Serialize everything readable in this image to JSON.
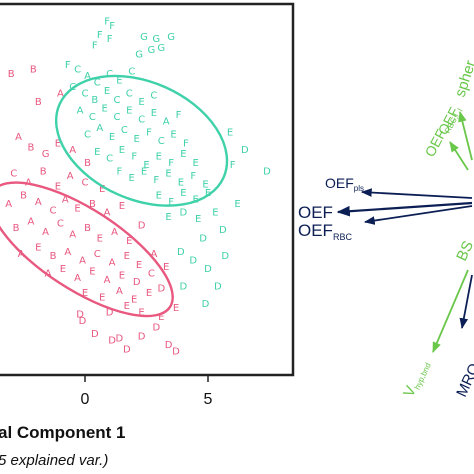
{
  "colors": {
    "group_a": "#e8587f",
    "group_b": "#3fd1a9",
    "navy": "#0c1f55",
    "green": "#69c74a",
    "axis": "#222222"
  },
  "chart_data": [
    {
      "type": "scatter",
      "xlabel_visible": "al Component 1",
      "xlabel_sub_visible": "5 explained var.)",
      "x_ticks": [
        "0",
        "5"
      ],
      "x_tick_values": [
        0,
        5
      ],
      "xlim_visible": [
        -3.4,
        8.2
      ],
      "ylim_visible": [
        -7.8,
        8.4
      ],
      "grid": false,
      "series": [
        {
          "color": "#e8587f",
          "points": [
            {
              "x": -2.1,
              "y": 5.6,
              "l": "B"
            },
            {
              "x": -3.0,
              "y": 5.4,
              "l": "B"
            },
            {
              "x": -1.9,
              "y": 4.1,
              "l": "B"
            },
            {
              "x": -1.0,
              "y": 4.5,
              "l": "A"
            },
            {
              "x": -2.7,
              "y": 2.5,
              "l": "A"
            },
            {
              "x": -2.2,
              "y": 2.0,
              "l": "B"
            },
            {
              "x": -1.6,
              "y": 1.7,
              "l": "G"
            },
            {
              "x": -1.1,
              "y": 2.2,
              "l": "E"
            },
            {
              "x": -0.5,
              "y": 1.9,
              "l": "A"
            },
            {
              "x": 0.1,
              "y": 1.3,
              "l": "B"
            },
            {
              "x": -2.9,
              "y": 0.8,
              "l": "C"
            },
            {
              "x": -2.3,
              "y": 0.4,
              "l": "A"
            },
            {
              "x": -1.7,
              "y": 0.9,
              "l": "B"
            },
            {
              "x": -1.1,
              "y": 0.2,
              "l": "E"
            },
            {
              "x": -0.6,
              "y": 0.7,
              "l": "A"
            },
            {
              "x": 0.0,
              "y": 0.4,
              "l": "C"
            },
            {
              "x": 0.7,
              "y": 0.1,
              "l": "E"
            },
            {
              "x": -3.1,
              "y": -0.6,
              "l": "A"
            },
            {
              "x": -2.5,
              "y": -0.2,
              "l": "B"
            },
            {
              "x": -1.9,
              "y": -0.5,
              "l": "A"
            },
            {
              "x": -1.3,
              "y": -0.9,
              "l": "C"
            },
            {
              "x": -0.8,
              "y": -0.4,
              "l": "A"
            },
            {
              "x": -0.3,
              "y": -0.8,
              "l": "E"
            },
            {
              "x": 0.3,
              "y": -0.6,
              "l": "B"
            },
            {
              "x": 0.9,
              "y": -1.0,
              "l": "A"
            },
            {
              "x": 1.5,
              "y": -0.7,
              "l": "E"
            },
            {
              "x": -2.8,
              "y": -1.7,
              "l": "B"
            },
            {
              "x": -2.2,
              "y": -1.4,
              "l": "A"
            },
            {
              "x": -1.6,
              "y": -1.9,
              "l": "A"
            },
            {
              "x": -1.0,
              "y": -1.5,
              "l": "C"
            },
            {
              "x": -0.5,
              "y": -2.0,
              "l": "A"
            },
            {
              "x": 0.1,
              "y": -1.7,
              "l": "B"
            },
            {
              "x": 0.6,
              "y": -2.2,
              "l": "E"
            },
            {
              "x": 1.2,
              "y": -1.9,
              "l": "A"
            },
            {
              "x": 1.8,
              "y": -2.3,
              "l": "E"
            },
            {
              "x": 2.3,
              "y": -1.6,
              "l": "D"
            },
            {
              "x": -2.6,
              "y": -2.9,
              "l": "A"
            },
            {
              "x": -1.9,
              "y": -2.6,
              "l": "E"
            },
            {
              "x": -1.3,
              "y": -3.0,
              "l": "B"
            },
            {
              "x": -0.7,
              "y": -2.8,
              "l": "A"
            },
            {
              "x": -0.1,
              "y": -3.2,
              "l": "A"
            },
            {
              "x": 0.5,
              "y": -2.9,
              "l": "C"
            },
            {
              "x": 1.1,
              "y": -3.3,
              "l": "A"
            },
            {
              "x": 1.7,
              "y": -3.0,
              "l": "E"
            },
            {
              "x": 2.2,
              "y": -3.4,
              "l": "E"
            },
            {
              "x": 2.8,
              "y": -2.9,
              "l": "A"
            },
            {
              "x": -1.5,
              "y": -3.8,
              "l": "A"
            },
            {
              "x": -0.9,
              "y": -3.6,
              "l": "E"
            },
            {
              "x": -0.3,
              "y": -4.0,
              "l": "A"
            },
            {
              "x": 0.3,
              "y": -3.7,
              "l": "E"
            },
            {
              "x": 0.9,
              "y": -4.1,
              "l": "A"
            },
            {
              "x": 1.5,
              "y": -3.9,
              "l": "E"
            },
            {
              "x": 2.1,
              "y": -4.2,
              "l": "D"
            },
            {
              "x": 2.7,
              "y": -3.8,
              "l": "C"
            },
            {
              "x": 3.3,
              "y": -3.5,
              "l": "E"
            },
            {
              "x": 0.0,
              "y": -4.7,
              "l": "E"
            },
            {
              "x": 0.7,
              "y": -4.9,
              "l": "E"
            },
            {
              "x": 1.4,
              "y": -4.6,
              "l": "A"
            },
            {
              "x": 2.0,
              "y": -5.0,
              "l": "E"
            },
            {
              "x": 2.6,
              "y": -4.7,
              "l": "E"
            },
            {
              "x": 3.1,
              "y": -4.5,
              "l": "D"
            },
            {
              "x": 1.0,
              "y": -5.6,
              "l": "D"
            },
            {
              "x": 1.7,
              "y": -5.3,
              "l": "E"
            },
            {
              "x": 2.3,
              "y": -5.6,
              "l": "E"
            },
            {
              "x": -0.2,
              "y": -5.7,
              "l": "D"
            },
            {
              "x": -0.1,
              "y": -6.0,
              "l": "D"
            },
            {
              "x": 0.4,
              "y": -6.6,
              "l": "D"
            },
            {
              "x": 1.1,
              "y": -6.9,
              "l": "D"
            },
            {
              "x": 1.4,
              "y": -6.8,
              "l": "D"
            },
            {
              "x": 1.7,
              "y": -7.3,
              "l": "D"
            },
            {
              "x": 2.3,
              "y": -6.7,
              "l": "D"
            },
            {
              "x": 2.9,
              "y": -6.3,
              "l": "D"
            },
            {
              "x": 3.4,
              "y": -7.1,
              "l": "D"
            },
            {
              "x": 3.7,
              "y": -7.4,
              "l": "D"
            },
            {
              "x": 3.1,
              "y": -5.8,
              "l": "E"
            },
            {
              "x": 3.7,
              "y": -5.4,
              "l": "E"
            }
          ],
          "ellipse": {
            "center": [
              -0.15,
              -2.55
            ],
            "rx": 4.3,
            "ry": 1.85,
            "angle_deg": 33
          }
        },
        {
          "color": "#3fd1a9",
          "points": [
            {
              "x": 0.9,
              "y": 7.8,
              "l": "F"
            },
            {
              "x": 1.1,
              "y": 7.6,
              "l": "F"
            },
            {
              "x": 0.6,
              "y": 7.2,
              "l": "F"
            },
            {
              "x": 1.0,
              "y": 7.0,
              "l": "F"
            },
            {
              "x": 2.4,
              "y": 7.1,
              "l": "G"
            },
            {
              "x": 2.9,
              "y": 7.0,
              "l": "G"
            },
            {
              "x": 3.5,
              "y": 7.1,
              "l": "G"
            },
            {
              "x": 2.7,
              "y": 6.5,
              "l": "G"
            },
            {
              "x": 3.1,
              "y": 6.6,
              "l": "G"
            },
            {
              "x": 2.2,
              "y": 6.3,
              "l": "G"
            },
            {
              "x": 0.4,
              "y": 6.7,
              "l": "F"
            },
            {
              "x": -0.7,
              "y": 5.8,
              "l": "F"
            },
            {
              "x": -0.3,
              "y": 5.6,
              "l": "C"
            },
            {
              "x": 0.1,
              "y": 5.3,
              "l": "A"
            },
            {
              "x": 0.5,
              "y": 5.0,
              "l": "C"
            },
            {
              "x": 1.0,
              "y": 5.4,
              "l": "C"
            },
            {
              "x": 1.4,
              "y": 5.1,
              "l": "E"
            },
            {
              "x": 1.9,
              "y": 5.5,
              "l": "C"
            },
            {
              "x": -0.5,
              "y": 4.8,
              "l": "C"
            },
            {
              "x": 0.0,
              "y": 4.5,
              "l": "C"
            },
            {
              "x": 0.4,
              "y": 4.2,
              "l": "B"
            },
            {
              "x": 0.9,
              "y": 4.6,
              "l": "E"
            },
            {
              "x": 1.3,
              "y": 4.2,
              "l": "C"
            },
            {
              "x": 1.8,
              "y": 4.5,
              "l": "C"
            },
            {
              "x": 2.3,
              "y": 4.1,
              "l": "E"
            },
            {
              "x": 2.8,
              "y": 4.4,
              "l": "C"
            },
            {
              "x": -0.2,
              "y": 3.7,
              "l": "A"
            },
            {
              "x": 0.3,
              "y": 3.4,
              "l": "C"
            },
            {
              "x": 0.8,
              "y": 3.8,
              "l": "E"
            },
            {
              "x": 1.3,
              "y": 3.4,
              "l": "C"
            },
            {
              "x": 1.8,
              "y": 3.7,
              "l": "E"
            },
            {
              "x": 2.3,
              "y": 3.3,
              "l": "C"
            },
            {
              "x": 2.8,
              "y": 3.6,
              "l": "E"
            },
            {
              "x": 3.3,
              "y": 3.2,
              "l": "A"
            },
            {
              "x": 3.8,
              "y": 3.5,
              "l": "F"
            },
            {
              "x": 0.1,
              "y": 2.6,
              "l": "C"
            },
            {
              "x": 0.6,
              "y": 2.9,
              "l": "A"
            },
            {
              "x": 1.1,
              "y": 2.5,
              "l": "E"
            },
            {
              "x": 1.6,
              "y": 2.8,
              "l": "C"
            },
            {
              "x": 2.1,
              "y": 2.4,
              "l": "E"
            },
            {
              "x": 2.6,
              "y": 2.7,
              "l": "F"
            },
            {
              "x": 3.1,
              "y": 2.3,
              "l": "C"
            },
            {
              "x": 3.6,
              "y": 2.6,
              "l": "E"
            },
            {
              "x": 4.1,
              "y": 2.2,
              "l": "F"
            },
            {
              "x": 0.5,
              "y": 1.8,
              "l": "E"
            },
            {
              "x": 1.0,
              "y": 1.5,
              "l": "C"
            },
            {
              "x": 1.5,
              "y": 1.9,
              "l": "E"
            },
            {
              "x": 2.0,
              "y": 1.6,
              "l": "F"
            },
            {
              "x": 2.5,
              "y": 1.2,
              "l": "E"
            },
            {
              "x": 3.0,
              "y": 1.6,
              "l": "E"
            },
            {
              "x": 3.5,
              "y": 1.3,
              "l": "F"
            },
            {
              "x": 4.0,
              "y": 1.7,
              "l": "E"
            },
            {
              "x": 4.5,
              "y": 1.3,
              "l": "E"
            },
            {
              "x": 1.4,
              "y": 0.9,
              "l": "F"
            },
            {
              "x": 1.9,
              "y": 0.6,
              "l": "E"
            },
            {
              "x": 2.4,
              "y": 0.9,
              "l": "E"
            },
            {
              "x": 2.9,
              "y": 0.5,
              "l": "F"
            },
            {
              "x": 3.4,
              "y": 0.8,
              "l": "E"
            },
            {
              "x": 3.9,
              "y": 0.4,
              "l": "E"
            },
            {
              "x": 4.4,
              "y": 0.7,
              "l": "F"
            },
            {
              "x": 4.9,
              "y": 0.3,
              "l": "E"
            },
            {
              "x": 3.0,
              "y": -0.2,
              "l": "E"
            },
            {
              "x": 3.5,
              "y": -0.5,
              "l": "F"
            },
            {
              "x": 4.0,
              "y": -0.1,
              "l": "E"
            },
            {
              "x": 4.5,
              "y": -0.4,
              "l": "E"
            },
            {
              "x": 5.0,
              "y": -0.1,
              "l": "E"
            },
            {
              "x": 3.4,
              "y": -1.2,
              "l": "E"
            },
            {
              "x": 4.0,
              "y": -1.0,
              "l": "D"
            },
            {
              "x": 4.6,
              "y": -1.3,
              "l": "E"
            },
            {
              "x": 5.3,
              "y": -1.0,
              "l": "E"
            },
            {
              "x": 5.6,
              "y": -1.8,
              "l": "D"
            },
            {
              "x": 4.8,
              "y": -2.2,
              "l": "D"
            },
            {
              "x": 3.9,
              "y": -2.8,
              "l": "D"
            },
            {
              "x": 4.4,
              "y": -3.2,
              "l": "D"
            },
            {
              "x": 5.0,
              "y": -3.6,
              "l": "D"
            },
            {
              "x": 5.7,
              "y": -3.0,
              "l": "D"
            },
            {
              "x": 4.0,
              "y": -4.4,
              "l": "D"
            },
            {
              "x": 4.9,
              "y": -5.2,
              "l": "D"
            },
            {
              "x": 5.4,
              "y": -4.4,
              "l": "D"
            },
            {
              "x": 6.5,
              "y": 1.9,
              "l": "D"
            },
            {
              "x": 7.4,
              "y": 0.9,
              "l": "D"
            },
            {
              "x": 5.9,
              "y": 2.7,
              "l": "E"
            },
            {
              "x": 6.2,
              "y": -0.6,
              "l": "E"
            },
            {
              "x": 6.0,
              "y": 1.2,
              "l": "F"
            }
          ],
          "ellipse": {
            "center": [
              2.3,
              2.45
            ],
            "rx": 3.65,
            "ry": 2.7,
            "angle_deg": 24
          }
        }
      ]
    },
    {
      "type": "loadings",
      "vectors": [
        {
          "label": "OEF",
          "sub": "pls",
          "color": "#0c1f55"
        },
        {
          "label": "OEF",
          "sub": "",
          "color": "#0c1f55"
        },
        {
          "label": "OEF",
          "sub": "RBC",
          "color": "#0c1f55"
        },
        {
          "label": "OEF",
          "sub": "RBC,l",
          "color": "#69c74a"
        },
        {
          "label": "OEF",
          "sub": "l",
          "color": "#69c74a"
        },
        {
          "label": "spher",
          "sub": "",
          "color": "#69c74a"
        },
        {
          "label": "BS",
          "sub": "",
          "color": "#69c74a"
        },
        {
          "label": "V",
          "sub": "hyp,bnd",
          "color": "#69c74a"
        },
        {
          "label": "MRO",
          "sub": "",
          "color": "#0c1f55"
        }
      ]
    }
  ]
}
